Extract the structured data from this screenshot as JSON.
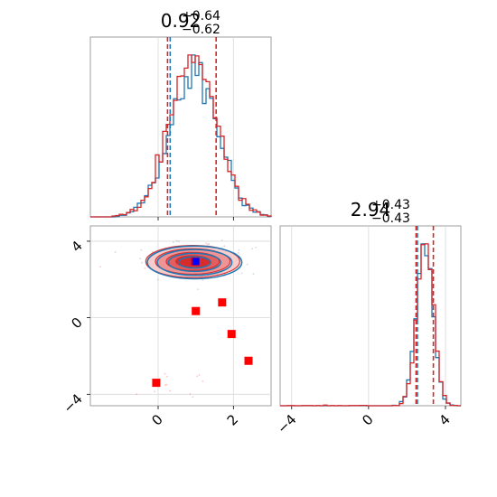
{
  "chart_data": {
    "type": "corner",
    "parameters": [
      {
        "title_main": "0.92",
        "title_plus": "+0.64",
        "title_minus": "−0.62",
        "median": 0.92,
        "plus": 0.64,
        "minus": 0.62,
        "range": [
          -1.8,
          3.0
        ],
        "ticks": [
          0,
          2
        ],
        "tick_labels": [
          "0",
          "2"
        ]
      },
      {
        "title_main": "2.94",
        "title_plus": "+0.43",
        "title_minus": "−0.43",
        "median": 2.94,
        "plus": 0.43,
        "minus": 0.43,
        "range": [
          -4.6,
          4.8
        ],
        "ticks": [
          -4,
          0,
          4
        ],
        "tick_labels": [
          "−4",
          "0",
          "4"
        ]
      }
    ],
    "panel_2d": {
      "xlim": [
        -1.8,
        3.0
      ],
      "ylim": [
        -4.6,
        4.8
      ],
      "xticks": [
        0,
        2
      ],
      "yticks": [
        -4,
        0,
        4
      ],
      "ytick_labels": [
        "−4",
        "0",
        "4"
      ],
      "red_squares": [
        [
          0.97,
          2.95
        ],
        [
          1.0,
          0.35
        ],
        [
          1.7,
          0.8
        ],
        [
          1.95,
          -0.85
        ],
        [
          2.4,
          -2.25
        ],
        [
          -0.05,
          -3.4
        ]
      ],
      "blue_square": [
        1.0,
        2.94
      ]
    },
    "series": [
      {
        "name": "",
        "color": "#1f77b4"
      },
      {
        "name": "",
        "color": "#d62728"
      }
    ],
    "grid": true
  }
}
